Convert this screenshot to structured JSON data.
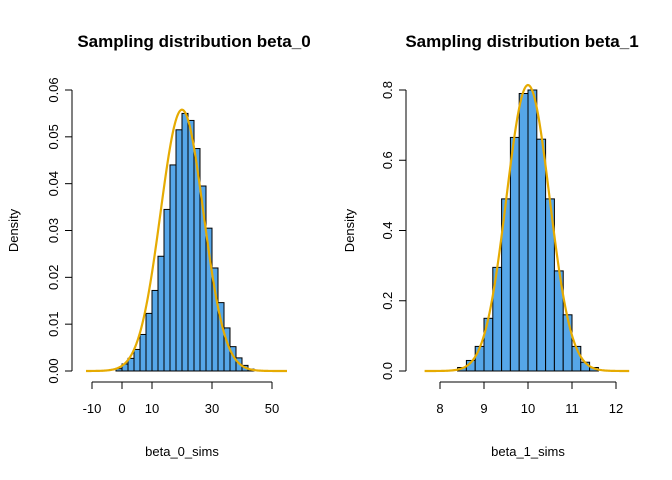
{
  "chart_data": [
    {
      "type": "bar",
      "title": "Sampling distribution beta_0",
      "xlabel": "beta_0_sims",
      "ylabel": "Density",
      "xlim": [
        -12,
        56
      ],
      "ylim": [
        0,
        0.06
      ],
      "xticks": [
        -10,
        0,
        10,
        30,
        50
      ],
      "yticks": [
        0.0,
        0.01,
        0.02,
        0.03,
        0.04,
        0.05,
        0.06
      ],
      "ytick_labels": [
        "0.00",
        "0.01",
        "0.02",
        "0.03",
        "0.04",
        "0.05",
        "0.06"
      ],
      "grid": false,
      "bin_width": 2,
      "bin_starts": [
        -2,
        0,
        2,
        4,
        6,
        8,
        10,
        12,
        14,
        16,
        18,
        20,
        22,
        24,
        26,
        28,
        30,
        32,
        34,
        36,
        38,
        40,
        42
      ],
      "values": [
        0.0005,
        0.0015,
        0.0027,
        0.0046,
        0.0078,
        0.0123,
        0.0172,
        0.0245,
        0.0345,
        0.044,
        0.0515,
        0.055,
        0.0535,
        0.0475,
        0.0395,
        0.0305,
        0.022,
        0.0146,
        0.0092,
        0.0052,
        0.0028,
        0.0012,
        0.0004
      ],
      "bar_color": "#56a6e8",
      "curve": {
        "mean": 20,
        "sd": 7.15,
        "xrange": [
          -12,
          55
        ],
        "color": "#e6ab02"
      }
    },
    {
      "type": "bar",
      "title": "Sampling distribution beta_1",
      "xlabel": "beta_1_sims",
      "ylabel": "Density",
      "xlim": [
        7.6,
        12.25
      ],
      "ylim": [
        0,
        0.8
      ],
      "xticks": [
        8,
        9,
        10,
        11,
        12
      ],
      "yticks": [
        0.0,
        0.2,
        0.4,
        0.6,
        0.8
      ],
      "ytick_labels": [
        "0.0",
        "0.2",
        "0.4",
        "0.6",
        "0.8"
      ],
      "grid": false,
      "bin_width": 0.2,
      "bin_starts": [
        8.4,
        8.6,
        8.8,
        9.0,
        9.2,
        9.4,
        9.6,
        9.8,
        10.0,
        10.2,
        10.4,
        10.6,
        10.8,
        11.0,
        11.2,
        11.4
      ],
      "values": [
        0.01,
        0.03,
        0.07,
        0.15,
        0.295,
        0.49,
        0.665,
        0.79,
        0.8,
        0.66,
        0.49,
        0.285,
        0.16,
        0.07,
        0.025,
        0.01
      ],
      "bar_color": "#56a6e8",
      "curve": {
        "mean": 10,
        "sd": 0.49,
        "xrange": [
          7.65,
          12.3
        ],
        "color": "#e6ab02"
      }
    }
  ]
}
